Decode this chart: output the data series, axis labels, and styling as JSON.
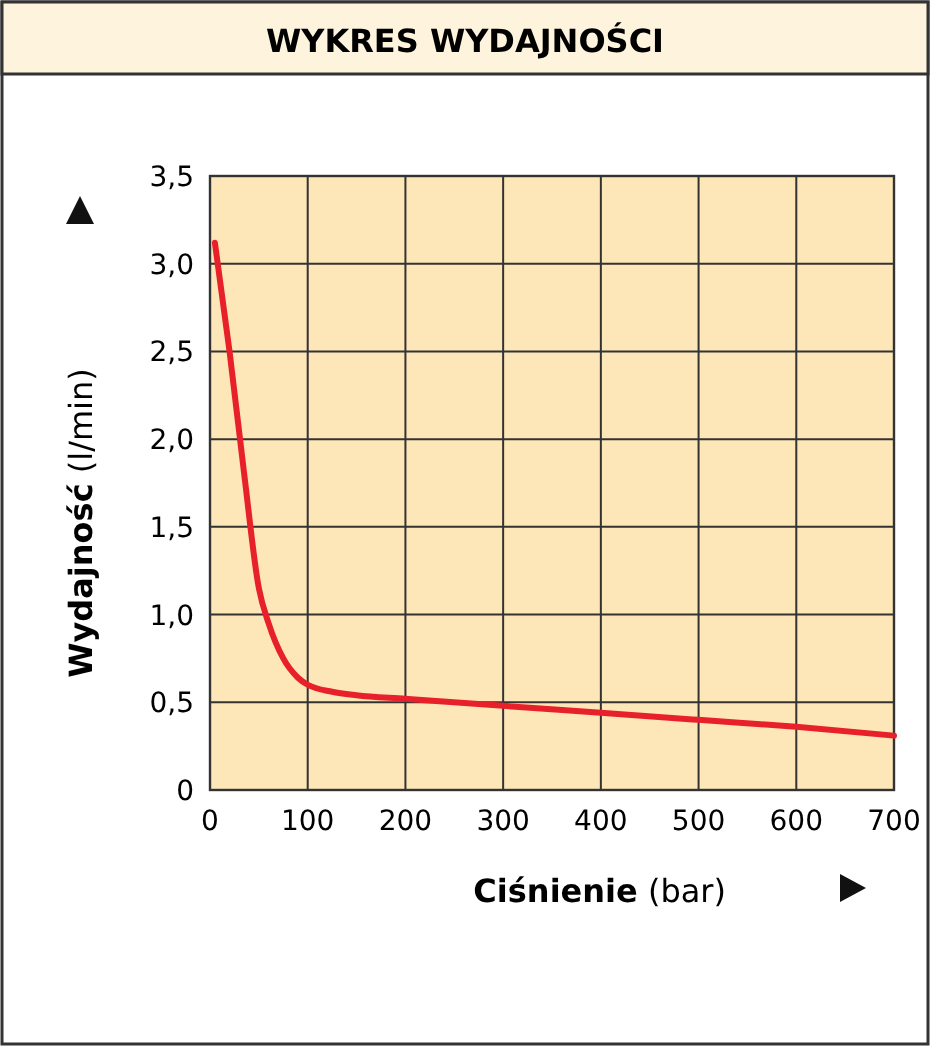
{
  "chart_data": {
    "type": "line",
    "title": "WYKRES WYDAJNOŚCI",
    "xlabel": "Ciśnienie (bar)",
    "ylabel": "Wydajność (l/min)",
    "x": [
      5,
      20,
      35,
      50,
      60,
      75,
      90,
      100,
      125,
      150,
      200,
      300,
      400,
      500,
      600,
      700
    ],
    "series": [
      {
        "color": "#e8202a",
        "values": [
          3.12,
          2.5,
          1.8,
          1.15,
          0.95,
          0.75,
          0.64,
          0.6,
          0.56,
          0.54,
          0.52,
          0.48,
          0.44,
          0.4,
          0.36,
          0.31
        ]
      }
    ],
    "xlim": [
      0,
      700
    ],
    "xticks": [
      0,
      100,
      200,
      300,
      400,
      500,
      600,
      700
    ],
    "ylim": [
      0,
      3.5
    ],
    "yticks": [
      0,
      {
        "value": 0.5,
        "label": "0,5"
      },
      {
        "value": 1,
        "label": "1,0"
      },
      {
        "value": 1.5,
        "label": "1,5"
      },
      {
        "value": 2,
        "label": "2,0"
      },
      {
        "value": 2.5,
        "label": "2,5"
      },
      {
        "value": 3,
        "label": "3,0"
      },
      {
        "value": 3.5,
        "label": "3,5"
      }
    ],
    "grid": true,
    "marker": "none",
    "line_style": "solid"
  }
}
